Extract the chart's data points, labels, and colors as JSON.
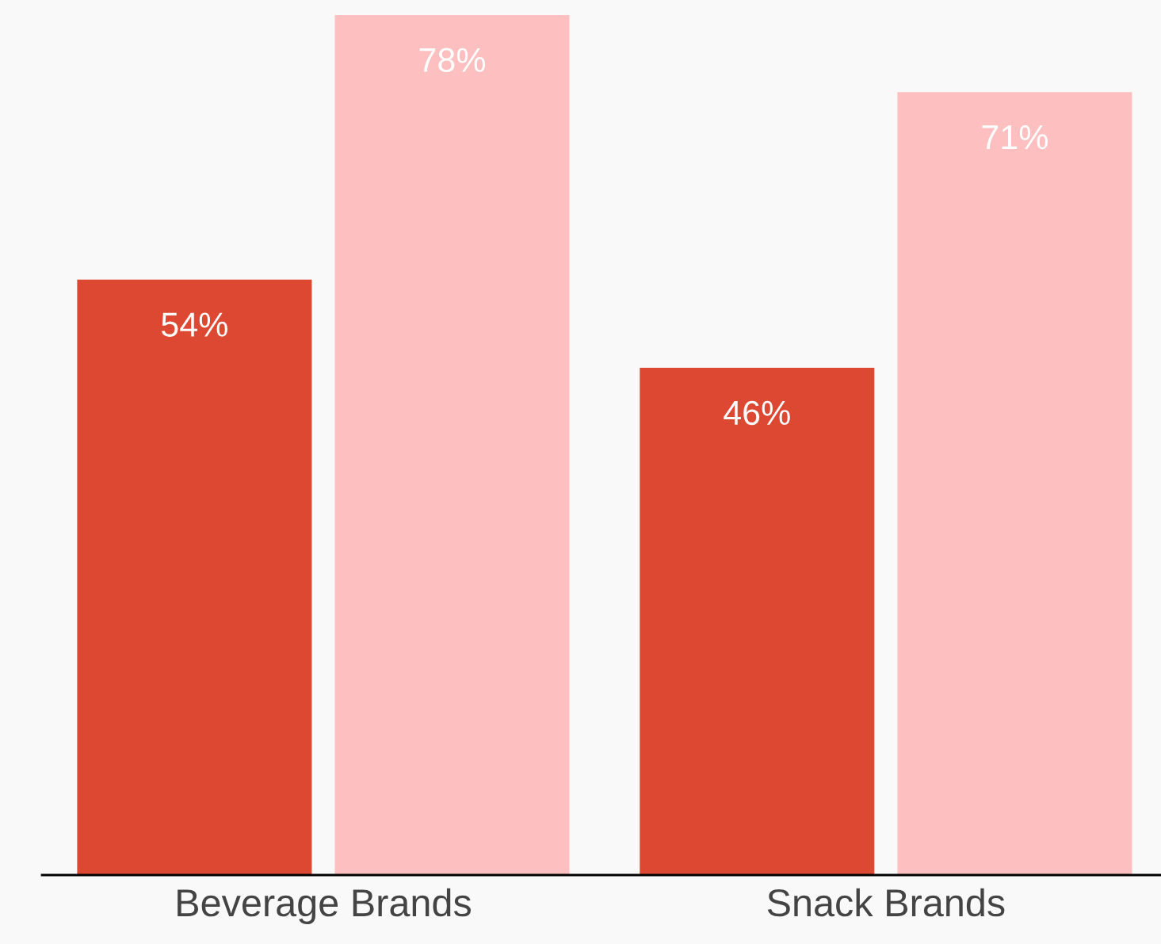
{
  "chart_data": {
    "type": "bar",
    "categories": [
      "Beverage Brands",
      "Snack Brands"
    ],
    "series": [
      {
        "color": "#dc4832",
        "values": [
          54,
          46
        ],
        "value_labels": [
          "54%",
          "46%"
        ]
      },
      {
        "color": "#fdbfbf",
        "values": [
          78,
          71
        ],
        "value_labels": [
          "78%",
          "71%"
        ]
      }
    ]
  }
}
